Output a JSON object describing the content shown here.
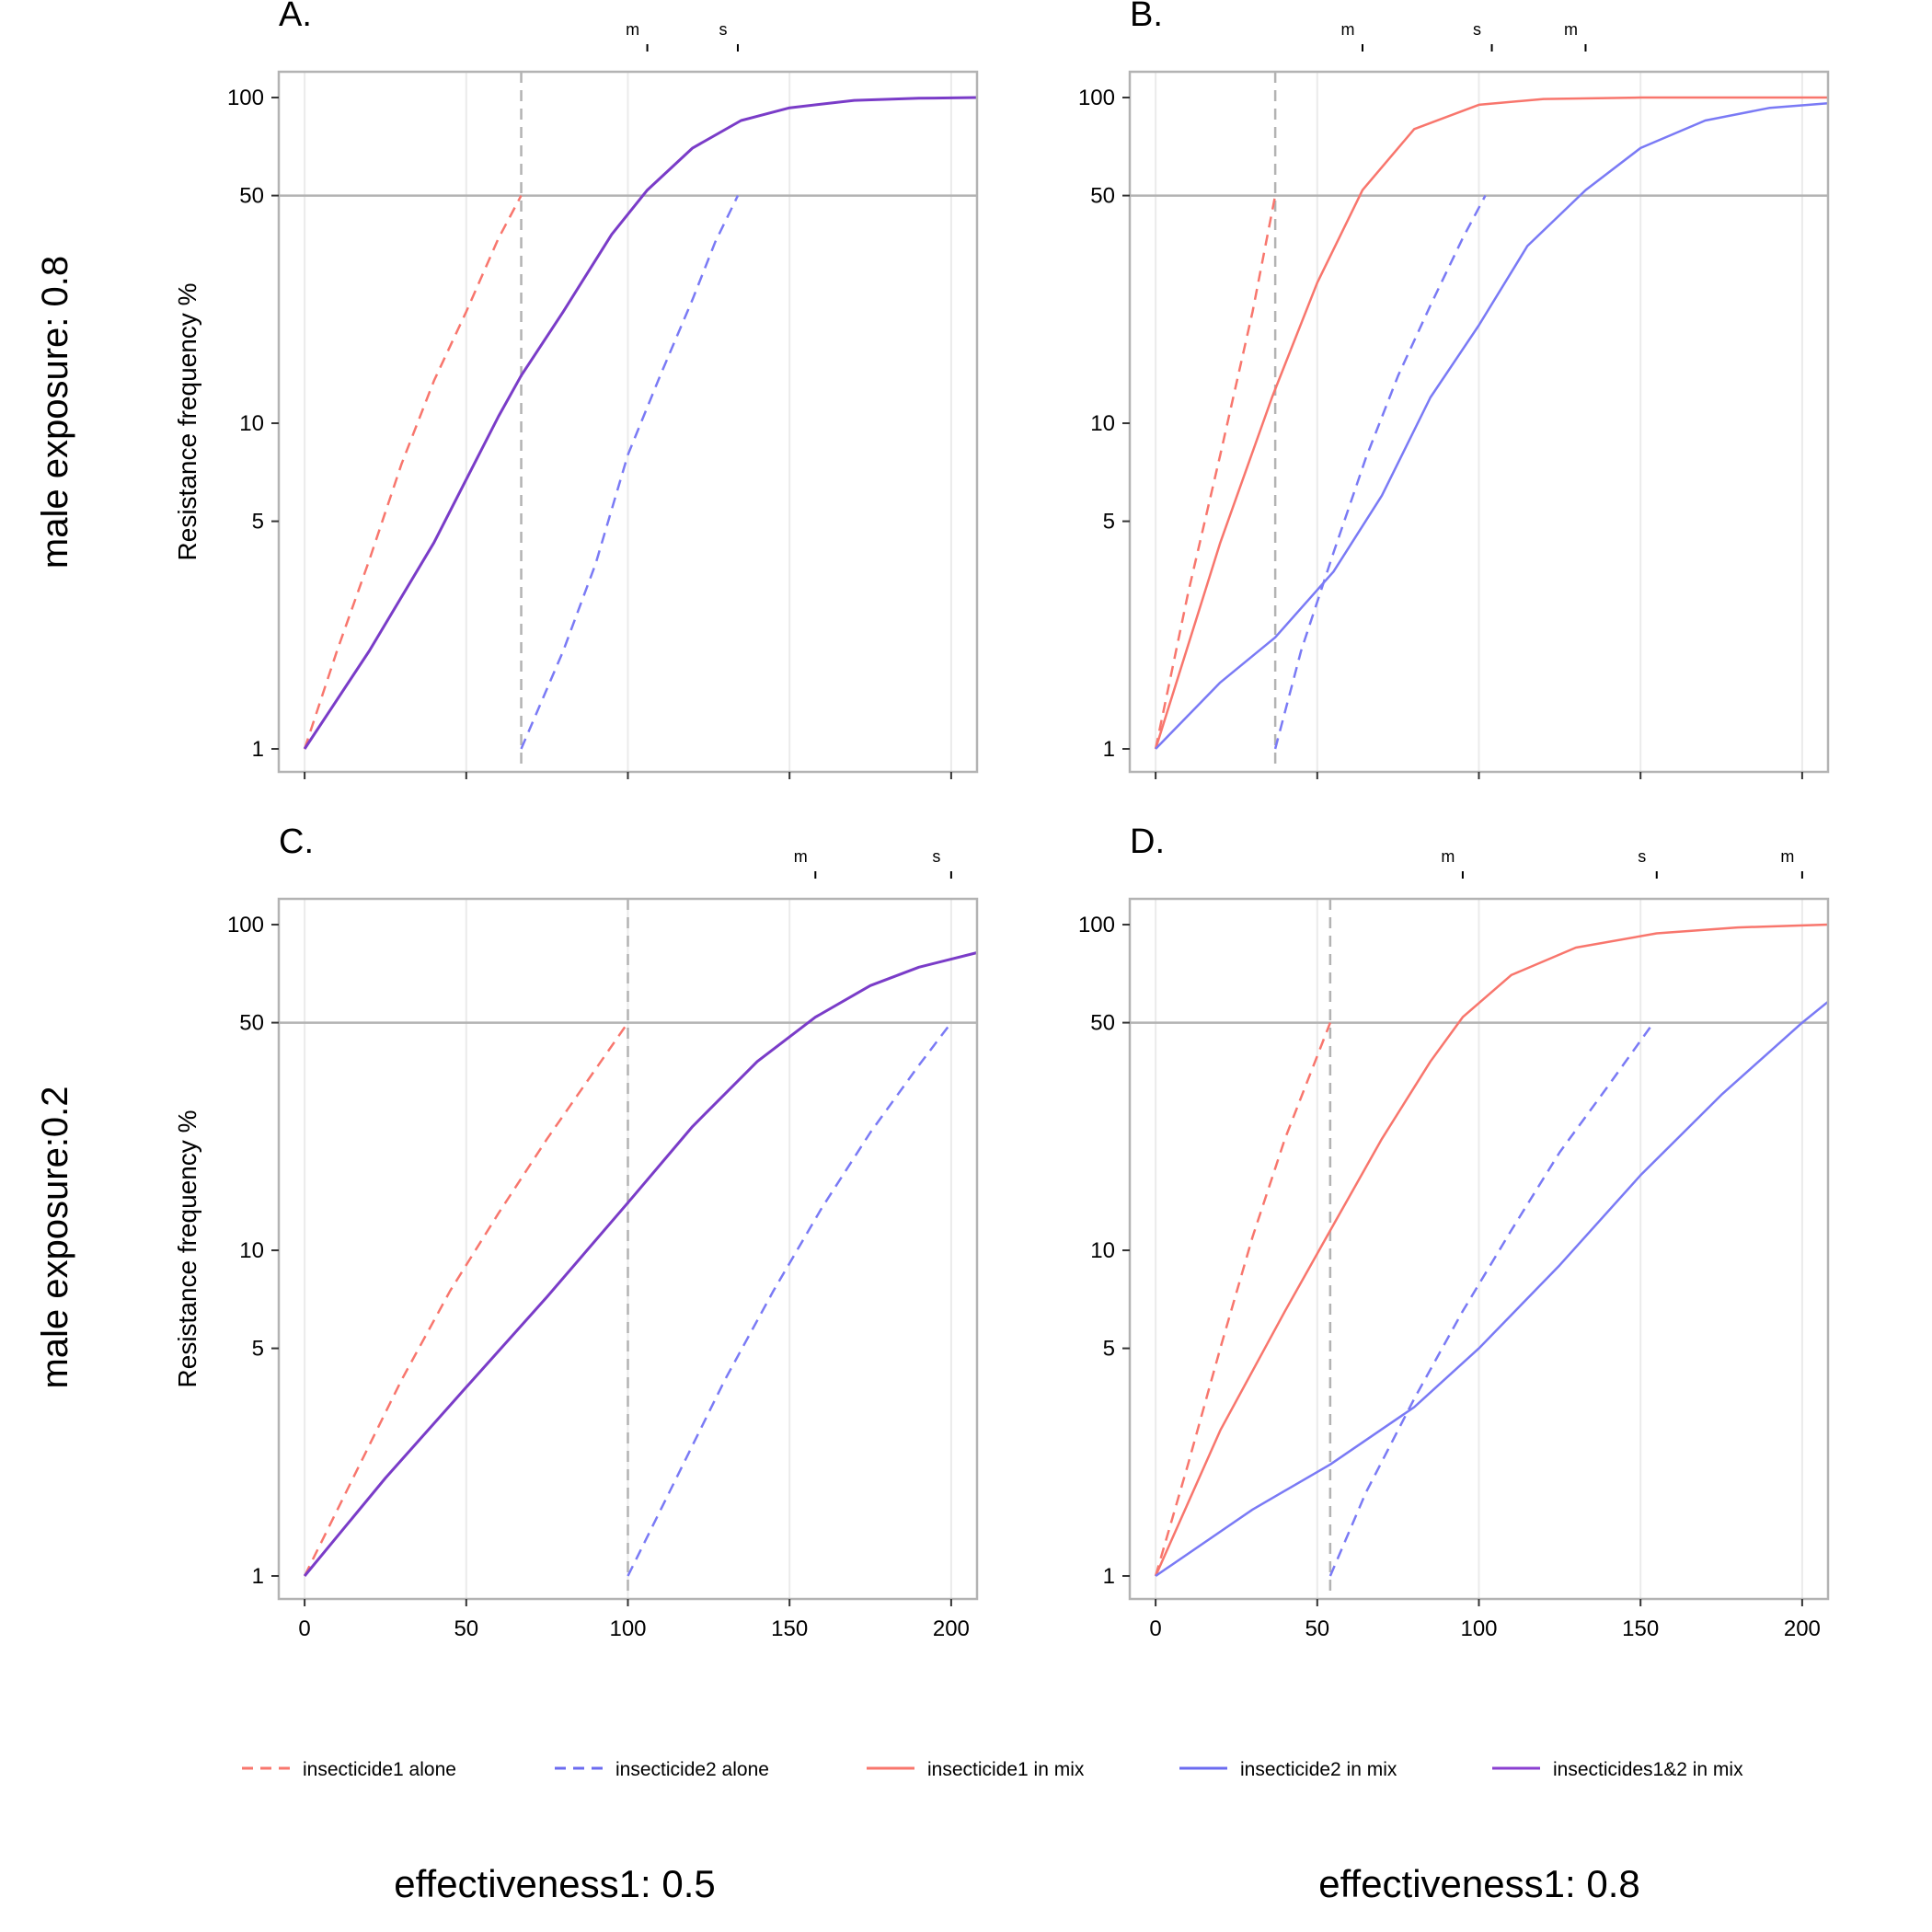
{
  "row_labels": [
    "male exposure: 0.8",
    "male exposure:0.2"
  ],
  "column_labels": [
    "effectiveness1: 0.5",
    "effectiveness1: 0.8"
  ],
  "legend": [
    {
      "label": "insecticide1 alone",
      "color": "#f8766d",
      "dash": true
    },
    {
      "label": "insecticide2 alone",
      "color": "#6b6bf0",
      "dash": true
    },
    {
      "label": "insecticide1 in mix",
      "color": "#f8766d",
      "dash": false
    },
    {
      "label": "insecticide2 in mix",
      "color": "#6b6bf0",
      "dash": false
    },
    {
      "label": "insecticides1&2 in mix",
      "color": "#8a3fd1",
      "dash": false
    }
  ],
  "colors": {
    "red": "#f8766d",
    "blue": "#7a7af5",
    "purple": "#7a3cc8",
    "reference": "#b3b3b3",
    "grid": "#ebebeb"
  },
  "chart_data": [
    {
      "panel": "A.",
      "type": "line",
      "ylabel": "Resistance frequency %",
      "y_scale": "log",
      "xlim": [
        -8,
        208
      ],
      "ylim": [
        0.85,
        120
      ],
      "x_ticks": [
        0,
        50,
        100,
        150,
        200
      ],
      "y_ticks": [
        1,
        5,
        10,
        50,
        100
      ],
      "hline": 50,
      "vline": 67,
      "top_markers": [
        {
          "label": "m",
          "x": 106
        },
        {
          "label": "s",
          "x": 134
        }
      ],
      "series": [
        {
          "key": "i1_alone",
          "dash": true,
          "color": "red",
          "points": [
            [
              0,
              1
            ],
            [
              10,
              2
            ],
            [
              20,
              3.8
            ],
            [
              30,
              7.5
            ],
            [
              40,
              13.5
            ],
            [
              50,
              22
            ],
            [
              60,
              37
            ],
            [
              67,
              50
            ]
          ]
        },
        {
          "key": "i2_alone",
          "dash": true,
          "color": "blue",
          "points": [
            [
              67,
              1
            ],
            [
              80,
              2
            ],
            [
              90,
              3.7
            ],
            [
              100,
              8
            ],
            [
              110,
              14
            ],
            [
              120,
              24
            ],
            [
              127,
              36
            ],
            [
              134,
              50
            ]
          ]
        },
        {
          "key": "mix_both",
          "dash": false,
          "color": "purple",
          "points": [
            [
              0,
              1
            ],
            [
              20,
              2
            ],
            [
              40,
              4.3
            ],
            [
              60,
              10.5
            ],
            [
              67,
              14
            ],
            [
              80,
              22
            ],
            [
              95,
              38
            ],
            [
              106,
              52
            ],
            [
              120,
              70
            ],
            [
              135,
              85
            ],
            [
              150,
              93
            ],
            [
              170,
              98
            ],
            [
              190,
              99.5
            ],
            [
              208,
              100
            ]
          ]
        }
      ]
    },
    {
      "panel": "B.",
      "type": "line",
      "ylabel": "",
      "y_scale": "log",
      "xlim": [
        -8,
        208
      ],
      "ylim": [
        0.85,
        120
      ],
      "x_ticks": [
        0,
        50,
        100,
        150,
        200
      ],
      "y_ticks": [
        1,
        5,
        10,
        50,
        100
      ],
      "hline": 50,
      "vline": 37,
      "top_markers": [
        {
          "label": "m",
          "x": 64
        },
        {
          "label": "s",
          "x": 104
        },
        {
          "label": "m",
          "x": 133
        }
      ],
      "series": [
        {
          "key": "i1_alone",
          "dash": true,
          "color": "red",
          "points": [
            [
              0,
              1
            ],
            [
              10,
              3
            ],
            [
              20,
              8
            ],
            [
              30,
              22
            ],
            [
              37,
              50
            ]
          ]
        },
        {
          "key": "i2_alone",
          "dash": true,
          "color": "blue",
          "points": [
            [
              37,
              1
            ],
            [
              45,
              2
            ],
            [
              55,
              4
            ],
            [
              65,
              7.8
            ],
            [
              75,
              14
            ],
            [
              85,
              23
            ],
            [
              95,
              37
            ],
            [
              102,
              50
            ]
          ]
        },
        {
          "key": "i1_mix",
          "dash": false,
          "color": "red",
          "points": [
            [
              0,
              1
            ],
            [
              20,
              4.3
            ],
            [
              36,
              12
            ],
            [
              50,
              27
            ],
            [
              64,
              52
            ],
            [
              80,
              80
            ],
            [
              100,
              95
            ],
            [
              120,
              99
            ],
            [
              150,
              100
            ],
            [
              208,
              100
            ]
          ]
        },
        {
          "key": "i2_mix",
          "dash": false,
          "color": "blue",
          "points": [
            [
              0,
              1
            ],
            [
              20,
              1.6
            ],
            [
              37,
              2.2
            ],
            [
              55,
              3.5
            ],
            [
              70,
              6
            ],
            [
              85,
              12
            ],
            [
              100,
              20
            ],
            [
              115,
              35
            ],
            [
              133,
              52
            ],
            [
              150,
              70
            ],
            [
              170,
              85
            ],
            [
              190,
              93
            ],
            [
              208,
              96
            ]
          ]
        }
      ]
    },
    {
      "panel": "C.",
      "type": "line",
      "ylabel": "Resistance frequency %",
      "y_scale": "log",
      "xlim": [
        -8,
        208
      ],
      "ylim": [
        0.85,
        120
      ],
      "x_ticks": [
        0,
        50,
        100,
        150,
        200
      ],
      "y_ticks": [
        1,
        5,
        10,
        50,
        100
      ],
      "hline": 50,
      "vline": 100,
      "top_markers": [
        {
          "label": "m",
          "x": 158
        },
        {
          "label": "s",
          "x": 200
        }
      ],
      "series": [
        {
          "key": "i1_alone",
          "dash": true,
          "color": "red",
          "points": [
            [
              0,
              1
            ],
            [
              15,
              2
            ],
            [
              30,
              4
            ],
            [
              45,
              7.5
            ],
            [
              60,
              13
            ],
            [
              75,
              22
            ],
            [
              90,
              36
            ],
            [
              100,
              50
            ]
          ]
        },
        {
          "key": "i2_alone",
          "dash": true,
          "color": "blue",
          "points": [
            [
              100,
              1
            ],
            [
              115,
              2
            ],
            [
              130,
              4
            ],
            [
              145,
              7.5
            ],
            [
              160,
              13.5
            ],
            [
              175,
              23
            ],
            [
              190,
              37
            ],
            [
              200,
              50
            ]
          ]
        },
        {
          "key": "mix_both",
          "dash": false,
          "color": "purple",
          "points": [
            [
              0,
              1
            ],
            [
              25,
              2
            ],
            [
              50,
              3.8
            ],
            [
              75,
              7.2
            ],
            [
              100,
              14
            ],
            [
              120,
              24
            ],
            [
              140,
              38
            ],
            [
              158,
              52
            ],
            [
              175,
              65
            ],
            [
              190,
              74
            ],
            [
              208,
              82
            ]
          ]
        }
      ]
    },
    {
      "panel": "D.",
      "type": "line",
      "ylabel": "",
      "y_scale": "log",
      "xlim": [
        -8,
        208
      ],
      "ylim": [
        0.85,
        120
      ],
      "x_ticks": [
        0,
        50,
        100,
        150,
        200
      ],
      "y_ticks": [
        1,
        5,
        10,
        50,
        100
      ],
      "hline": 50,
      "vline": 54,
      "top_markers": [
        {
          "label": "m",
          "x": 95
        },
        {
          "label": "s",
          "x": 155
        },
        {
          "label": "m",
          "x": 200
        }
      ],
      "series": [
        {
          "key": "i1_alone",
          "dash": true,
          "color": "red",
          "points": [
            [
              0,
              1
            ],
            [
              10,
              2.2
            ],
            [
              20,
              5
            ],
            [
              30,
              11
            ],
            [
              40,
              22
            ],
            [
              54,
              50
            ]
          ]
        },
        {
          "key": "i2_alone",
          "dash": true,
          "color": "blue",
          "points": [
            [
              54,
              1
            ],
            [
              65,
              1.8
            ],
            [
              80,
              3.5
            ],
            [
              95,
              6.5
            ],
            [
              110,
              11.5
            ],
            [
              125,
              20
            ],
            [
              140,
              32
            ],
            [
              154,
              50
            ]
          ]
        },
        {
          "key": "i1_mix",
          "dash": false,
          "color": "red",
          "points": [
            [
              0,
              1
            ],
            [
              20,
              2.8
            ],
            [
              40,
              6.5
            ],
            [
              54,
              11.5
            ],
            [
              70,
              22
            ],
            [
              85,
              38
            ],
            [
              95,
              52
            ],
            [
              110,
              70
            ],
            [
              130,
              85
            ],
            [
              155,
              94
            ],
            [
              180,
              98
            ],
            [
              208,
              100
            ]
          ]
        },
        {
          "key": "i2_mix",
          "dash": false,
          "color": "blue",
          "points": [
            [
              0,
              1
            ],
            [
              30,
              1.6
            ],
            [
              54,
              2.2
            ],
            [
              80,
              3.3
            ],
            [
              100,
              5
            ],
            [
              125,
              9
            ],
            [
              150,
              17
            ],
            [
              175,
              30
            ],
            [
              200,
              50
            ],
            [
              208,
              58
            ]
          ]
        }
      ]
    }
  ]
}
